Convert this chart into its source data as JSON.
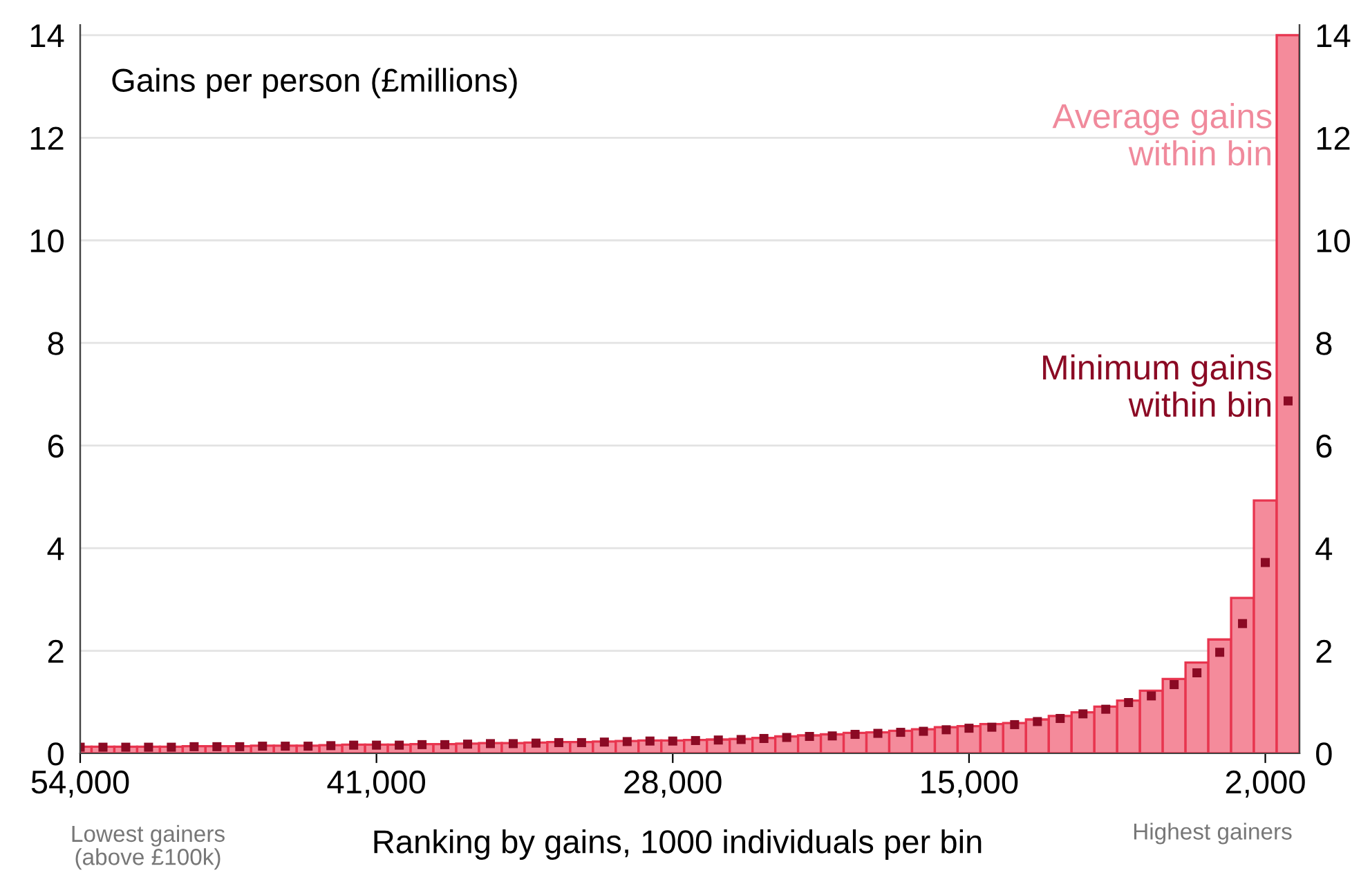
{
  "chart_data": {
    "type": "bar",
    "ylabel": "Gains per person (£millions)",
    "xlabel": "Ranking by gains, 1000 individuals per bin",
    "x": [
      54000,
      53000,
      52000,
      51000,
      50000,
      49000,
      48000,
      47000,
      46000,
      45000,
      44000,
      43000,
      42000,
      41000,
      40000,
      39000,
      38000,
      37000,
      36000,
      35000,
      34000,
      33000,
      32000,
      31000,
      30000,
      29000,
      28000,
      27000,
      26000,
      25000,
      24000,
      23000,
      22000,
      21000,
      20000,
      19000,
      18000,
      17000,
      16000,
      15000,
      14000,
      13000,
      12000,
      11000,
      10000,
      9000,
      8000,
      7000,
      6000,
      5000,
      4000,
      3000,
      2000,
      1000
    ],
    "series": [
      {
        "name": "Average gains\nwithin bin",
        "color": "#f48b9b",
        "values": [
          0.13,
          0.13,
          0.13,
          0.13,
          0.13,
          0.14,
          0.14,
          0.14,
          0.15,
          0.15,
          0.15,
          0.16,
          0.17,
          0.17,
          0.17,
          0.18,
          0.18,
          0.19,
          0.2,
          0.2,
          0.21,
          0.22,
          0.22,
          0.23,
          0.24,
          0.25,
          0.25,
          0.26,
          0.27,
          0.28,
          0.3,
          0.33,
          0.35,
          0.37,
          0.4,
          0.41,
          0.44,
          0.47,
          0.51,
          0.53,
          0.57,
          0.59,
          0.66,
          0.73,
          0.8,
          0.91,
          1.03,
          1.22,
          1.45,
          1.77,
          2.22,
          3.03,
          4.93,
          14.0
        ]
      },
      {
        "name": "Minimum gains\nwithin bin",
        "type": "scatter",
        "marker": "square",
        "color": "#8b0a24",
        "values": [
          0.12,
          0.12,
          0.12,
          0.12,
          0.12,
          0.13,
          0.13,
          0.13,
          0.14,
          0.14,
          0.14,
          0.15,
          0.16,
          0.16,
          0.16,
          0.17,
          0.17,
          0.18,
          0.19,
          0.19,
          0.2,
          0.21,
          0.21,
          0.22,
          0.23,
          0.24,
          0.24,
          0.25,
          0.26,
          0.27,
          0.29,
          0.31,
          0.33,
          0.34,
          0.37,
          0.39,
          0.41,
          0.43,
          0.46,
          0.49,
          0.51,
          0.56,
          0.62,
          0.68,
          0.77,
          0.86,
          0.99,
          1.12,
          1.34,
          1.57,
          1.97,
          2.53,
          3.72,
          6.87
        ]
      }
    ],
    "xlim": [
      54000,
      500
    ],
    "xticks": [
      {
        "value": 54000,
        "label": "54,000"
      },
      {
        "value": 41000,
        "label": "41,000"
      },
      {
        "value": 28000,
        "label": "28,000"
      },
      {
        "value": 15000,
        "label": "15,000"
      },
      {
        "value": 2000,
        "label": "2,000"
      }
    ],
    "ylim": [
      0,
      14.2
    ],
    "yticks": [
      0,
      2,
      4,
      6,
      8,
      10,
      12,
      14
    ],
    "y2lim": [
      0,
      14.2
    ],
    "y2ticks": [
      0,
      2,
      4,
      6,
      8,
      10,
      12,
      14
    ],
    "grid": "y",
    "legend": "right",
    "annotations": [
      "Lowest gainers\n(above £100k)",
      "Highest gainers"
    ]
  }
}
